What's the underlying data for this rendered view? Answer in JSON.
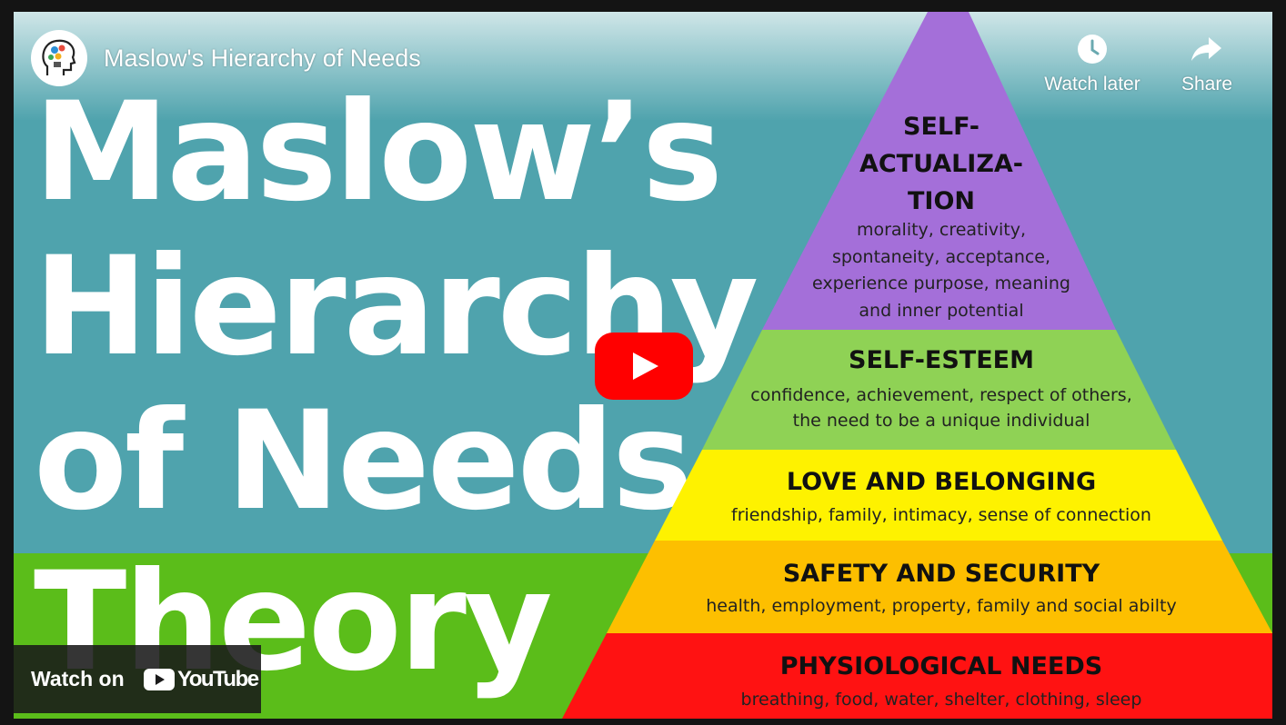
{
  "video": {
    "title": "Maslow's Hierarchy of Needs"
  },
  "thumbnail": {
    "headline_lines": [
      "Maslow’s",
      "Hierarchy",
      "of Needs",
      "Theory"
    ],
    "pyramid": [
      {
        "title_lines": [
          "SELF-",
          "ACTUALIZA-",
          "TION"
        ],
        "description_lines": [
          "morality, creativity,",
          "spontaneity, acceptance,",
          "experience purpose, meaning",
          "and inner potential"
        ],
        "color": "#a46fd9"
      },
      {
        "title_lines": [
          "SELF-ESTEEM"
        ],
        "description_lines": [
          "confidence, achievement, respect of others,",
          "the need to be a unique individual"
        ],
        "color": "#8fd255"
      },
      {
        "title_lines": [
          "LOVE AND BELONGING"
        ],
        "description_lines": [
          "friendship, family, intimacy, sense of connection"
        ],
        "color": "#fef200"
      },
      {
        "title_lines": [
          "SAFETY AND SECURITY"
        ],
        "description_lines": [
          "health, employment, property, family and social abilty"
        ],
        "color": "#fdbf00"
      },
      {
        "title_lines": [
          "PHYSIOLOGICAL NEEDS"
        ],
        "description_lines": [
          "breathing, food, water, shelter, clothing, sleep"
        ],
        "color": "#ff1212"
      }
    ]
  },
  "actions": {
    "watch_later": "Watch later",
    "share": "Share"
  },
  "watch_on": {
    "label": "Watch on",
    "brand": "YouTube"
  },
  "colors": {
    "teal": "#4fa3ad",
    "green_band": "#5bbd1a",
    "youtube_red": "#ff0000"
  },
  "icons": {
    "watch_later": "clock-icon",
    "share": "share-arrow-icon",
    "play": "play-icon",
    "logo": "head-lightbulb-icon"
  }
}
